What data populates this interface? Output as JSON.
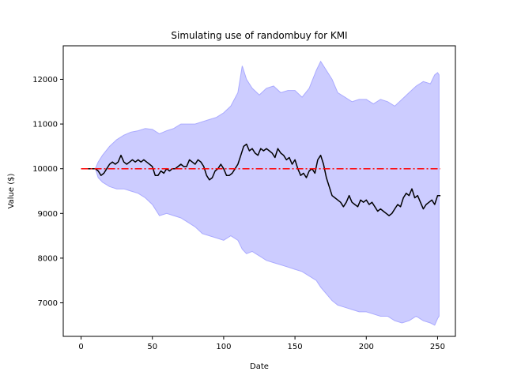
{
  "chart_data": {
    "type": "line",
    "title": "Simulating use of randombuy for KMI",
    "xlabel": "Date",
    "ylabel": "Value ($)",
    "xlim": [
      -12.5,
      262.5
    ],
    "ylim": [
      6250,
      12750
    ],
    "x_ticks": [
      0,
      50,
      100,
      150,
      200,
      250
    ],
    "y_ticks": [
      7000,
      8000,
      9000,
      10000,
      11000,
      12000
    ],
    "grid": false,
    "colors": {
      "band_fill": "#ccccff",
      "band_edge": "#aaaaff",
      "portfolio_line": "#000000",
      "baseline": "#ff0000"
    },
    "series": [
      {
        "role": "band",
        "style": "fill",
        "x": [
          0,
          10,
          12,
          15,
          20,
          25,
          30,
          35,
          40,
          45,
          50,
          55,
          60,
          65,
          70,
          75,
          80,
          85,
          90,
          95,
          100,
          105,
          110,
          113,
          116,
          120,
          125,
          130,
          135,
          140,
          145,
          150,
          155,
          160,
          165,
          168,
          172,
          176,
          180,
          185,
          190,
          195,
          200,
          205,
          210,
          215,
          220,
          225,
          230,
          235,
          240,
          245,
          248,
          250,
          251
        ],
        "upper": [
          10000,
          10000,
          10150,
          10300,
          10500,
          10650,
          10750,
          10820,
          10850,
          10900,
          10880,
          10780,
          10850,
          10900,
          11000,
          11000,
          11000,
          11050,
          11100,
          11150,
          11250,
          11400,
          11700,
          12300,
          12000,
          11800,
          11650,
          11800,
          11850,
          11700,
          11750,
          11750,
          11600,
          11800,
          12200,
          12400,
          12200,
          12000,
          11700,
          11600,
          11500,
          11550,
          11550,
          11450,
          11550,
          11500,
          11400,
          11550,
          11700,
          11850,
          11950,
          11900,
          12100,
          12150,
          12100
        ],
        "lower": [
          10000,
          10000,
          9800,
          9700,
          9600,
          9550,
          9550,
          9500,
          9450,
          9350,
          9200,
          8950,
          9000,
          8950,
          8900,
          8800,
          8700,
          8550,
          8500,
          8450,
          8400,
          8500,
          8400,
          8200,
          8100,
          8150,
          8050,
          7950,
          7900,
          7850,
          7800,
          7750,
          7700,
          7600,
          7500,
          7350,
          7200,
          7050,
          6950,
          6900,
          6850,
          6800,
          6800,
          6750,
          6700,
          6700,
          6600,
          6550,
          6600,
          6700,
          6600,
          6550,
          6500,
          6650,
          6700
        ]
      },
      {
        "role": "portfolio",
        "style": "line",
        "x": [
          0,
          5,
          10,
          12,
          14,
          16,
          18,
          20,
          22,
          24,
          26,
          28,
          30,
          32,
          34,
          36,
          38,
          40,
          42,
          44,
          46,
          48,
          50,
          52,
          54,
          56,
          58,
          60,
          62,
          64,
          66,
          68,
          70,
          72,
          74,
          76,
          78,
          80,
          82,
          84,
          86,
          88,
          90,
          92,
          94,
          96,
          98,
          100,
          102,
          104,
          106,
          108,
          110,
          112,
          114,
          116,
          118,
          120,
          122,
          124,
          126,
          128,
          130,
          132,
          134,
          136,
          138,
          140,
          142,
          144,
          146,
          148,
          150,
          152,
          154,
          156,
          158,
          160,
          162,
          164,
          166,
          168,
          170,
          172,
          174,
          176,
          178,
          180,
          182,
          184,
          186,
          188,
          190,
          192,
          194,
          196,
          198,
          200,
          202,
          204,
          206,
          208,
          210,
          212,
          214,
          216,
          218,
          220,
          222,
          224,
          226,
          228,
          230,
          232,
          234,
          236,
          238,
          240,
          242,
          244,
          246,
          248,
          250,
          252
        ],
        "values": [
          10000,
          10000,
          10000,
          9950,
          9850,
          9900,
          10000,
          10100,
          10150,
          10100,
          10150,
          10300,
          10150,
          10100,
          10150,
          10200,
          10150,
          10200,
          10150,
          10200,
          10150,
          10100,
          10050,
          9850,
          9850,
          9950,
          9900,
          10000,
          9950,
          10000,
          10000,
          10050,
          10100,
          10050,
          10050,
          10200,
          10150,
          10100,
          10200,
          10150,
          10050,
          9850,
          9750,
          9800,
          9950,
          10000,
          10100,
          10000,
          9850,
          9850,
          9900,
          10000,
          10100,
          10300,
          10500,
          10550,
          10400,
          10450,
          10350,
          10300,
          10450,
          10400,
          10450,
          10400,
          10350,
          10250,
          10450,
          10350,
          10300,
          10200,
          10250,
          10100,
          10200,
          10000,
          9850,
          9900,
          9800,
          9950,
          10000,
          9900,
          10200,
          10300,
          10100,
          9800,
          9600,
          9400,
          9350,
          9300,
          9250,
          9150,
          9250,
          9400,
          9250,
          9200,
          9150,
          9300,
          9250,
          9300,
          9200,
          9250,
          9150,
          9050,
          9100,
          9050,
          9000,
          8950,
          9000,
          9100,
          9200,
          9150,
          9350,
          9450,
          9400,
          9550,
          9350,
          9400,
          9250,
          9100,
          9200,
          9250,
          9300,
          9200,
          9400,
          9400
        ]
      },
      {
        "role": "baseline",
        "style": "dash-dot",
        "x": [
          0,
          252
        ],
        "values": [
          10000,
          10000
        ]
      }
    ]
  }
}
